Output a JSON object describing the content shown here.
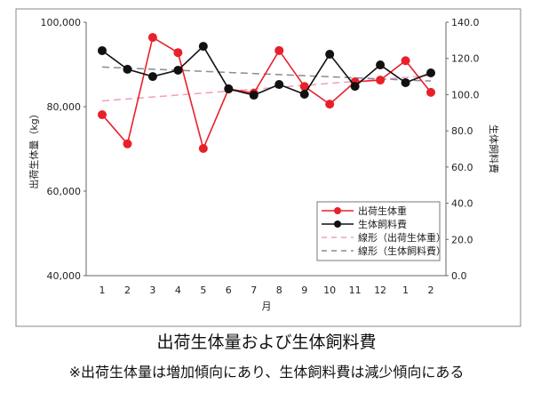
{
  "chart_data": {
    "type": "line",
    "title": "出荷生体量および生体飼料費",
    "note": "※出荷生体量は増加傾向にあり、生体飼料費は減少傾向にある",
    "xlabel": "月",
    "ylabel": "出荷生体量（kg）",
    "y2label": "生体飼料費",
    "categories": [
      "1",
      "2",
      "3",
      "4",
      "5",
      "6",
      "7",
      "8",
      "9",
      "10",
      "11",
      "12",
      "1",
      "2"
    ],
    "ylim": [
      40000,
      100000
    ],
    "yticks": [
      "40,000",
      "60,000",
      "80,000",
      "100,000"
    ],
    "y2lim": [
      0,
      140
    ],
    "y2ticks": [
      "0.0",
      "20.0",
      "40.0",
      "60.0",
      "80.0",
      "100.0",
      "120.0",
      "140.0"
    ],
    "grid": false,
    "legend_position": "bottom-right",
    "series": [
      {
        "name": "出荷生体重",
        "axis": "left",
        "color": "#e8202a",
        "values": [
          78100,
          71200,
          96400,
          92800,
          70100,
          84200,
          83200,
          93300,
          84800,
          80600,
          85900,
          86300,
          90900,
          83400
        ]
      },
      {
        "name": "生体飼料費",
        "axis": "right",
        "color": "#111111",
        "values": [
          124.3,
          114.0,
          110.0,
          113.5,
          126.7,
          103.2,
          99.7,
          105.6,
          100.2,
          122.3,
          104.6,
          116.4,
          106.6,
          112.0
        ]
      }
    ],
    "trendlines": [
      {
        "name": "線形（出荷生体重）",
        "of": 0,
        "color": "#f0a0b8"
      },
      {
        "name": "線形（生体飼料費）",
        "of": 1,
        "color": "#8a8a9a"
      }
    ]
  }
}
